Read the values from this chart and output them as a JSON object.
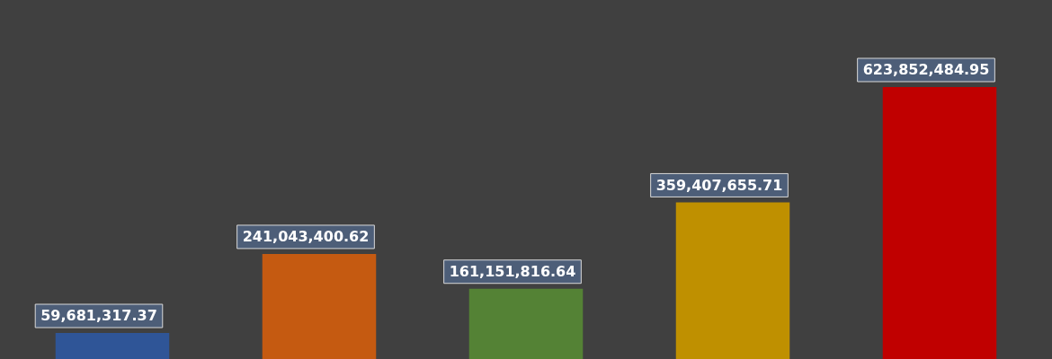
{
  "chart_data": {
    "type": "bar",
    "categories": [
      null,
      null,
      null,
      null,
      null
    ],
    "values": [
      59681317.37,
      241043400.62,
      161151816.64,
      359407655.71,
      623852484.95
    ],
    "colors": [
      "#2f5597",
      "#c55a11",
      "#548235",
      "#bf9000",
      "#c00000"
    ],
    "value_labels": [
      "59,681,317.37",
      "241,043,400.62",
      "161,151,816.64",
      "359,407,655.71",
      "623,852,484.95"
    ],
    "grid": false,
    "legend": false
  }
}
